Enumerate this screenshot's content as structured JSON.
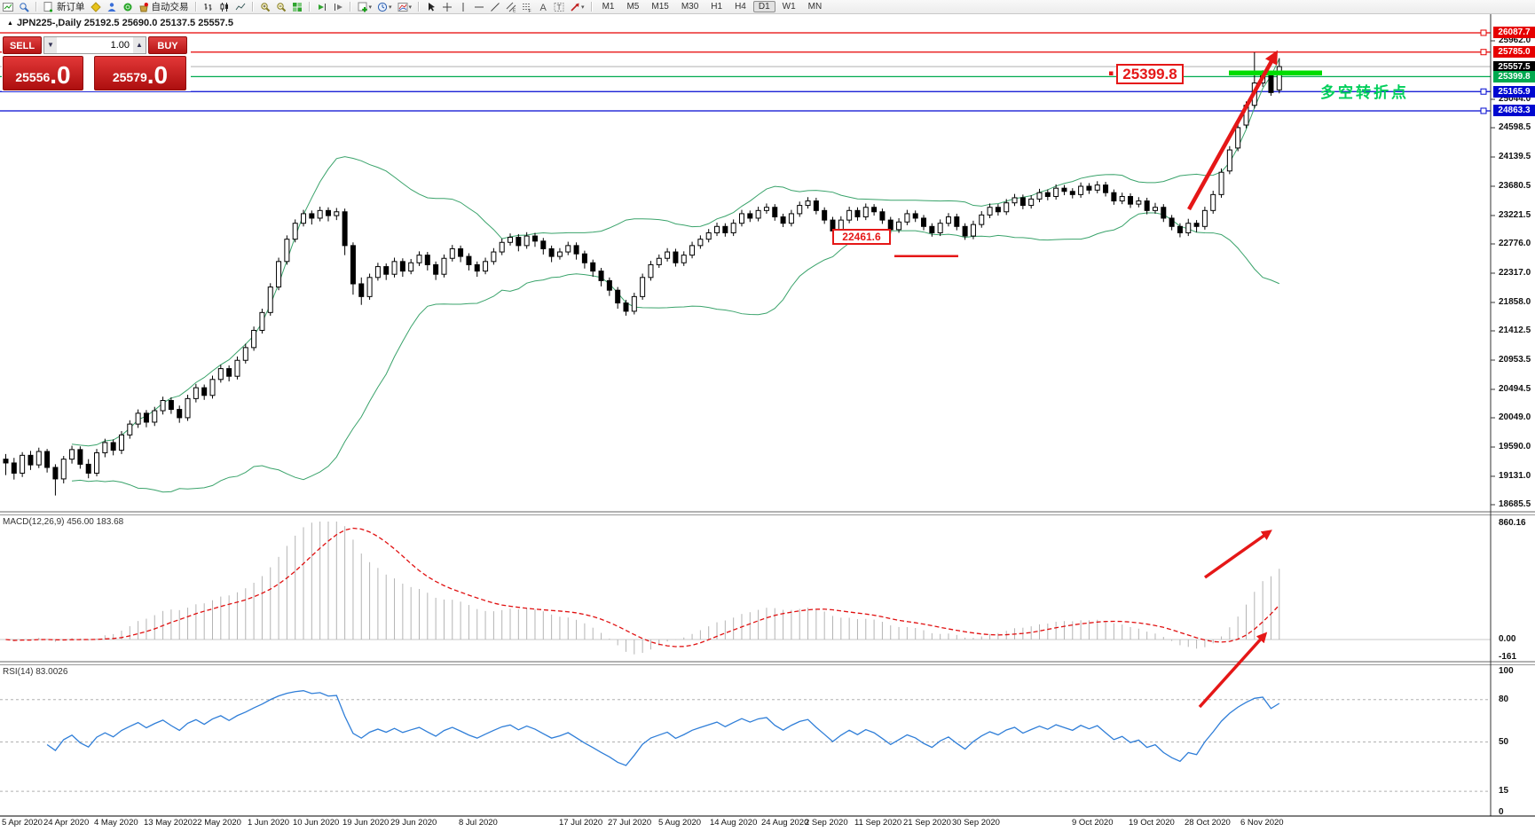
{
  "toolbar": {
    "new_order_label": "新订单",
    "autotrading_label": "自动交易",
    "timeframes": [
      "M1",
      "M5",
      "M15",
      "M30",
      "H1",
      "H4",
      "D1",
      "W1",
      "MN"
    ],
    "active_timeframe": "D1"
  },
  "order_panel": {
    "sell_label": "SELL",
    "buy_label": "BUY",
    "volume": "1.00",
    "sell_price": "25556",
    "sell_price_frac": ".0",
    "buy_price": "25579",
    "buy_price_frac": ".0"
  },
  "chart": {
    "title": "JPN225-,Daily 25192.5 25690.0 25137.5 25557.5",
    "symbol_marker": "▲"
  },
  "annotations": {
    "price_label_upper": "25399.8",
    "price_label_lower": "22461.6",
    "cn_note": "多空转折点"
  },
  "indicator_labels": {
    "macd": "MACD(12,26,9) 456.00 183.68",
    "rsi": "RSI(14) 83.0026"
  },
  "chart_data": {
    "type": "candlestick",
    "symbol": "JPN225-",
    "period": "Daily",
    "last_ohlc": {
      "open": 25192.5,
      "high": 25690.0,
      "low": 25137.5,
      "close": 25557.5
    },
    "bid": 25556.0,
    "ask": 25579.0,
    "visible_price_range": [
      18500,
      26250
    ],
    "price_ticks": [
      25962.0,
      25044.0,
      24598.5,
      24139.5,
      23680.5,
      23221.5,
      22776.0,
      22317.0,
      21858.0,
      21412.5,
      20953.5,
      20494.5,
      20049.0,
      19590.0,
      19131.0,
      18685.5
    ],
    "level_lines": [
      {
        "price": 26087.7,
        "color": "red"
      },
      {
        "price": 25785.0,
        "color": "red"
      },
      {
        "price": 25557.5,
        "color": "gray",
        "type": "last-price"
      },
      {
        "price": 25399.8,
        "color": "green"
      },
      {
        "price": 25165.9,
        "color": "blue"
      },
      {
        "price": 24863.3,
        "color": "blue"
      }
    ],
    "date_labels": [
      "5 Apr 2020",
      "24 Apr 2020",
      "4 May 2020",
      "13 May 2020",
      "22 May 2020",
      "1 Jun 2020",
      "10 Jun 2020",
      "19 Jun 2020",
      "29 Jun 2020",
      "8 Jul 2020",
      "17 Jul 2020",
      "27 Jul 2020",
      "5 Aug 2020",
      "14 Aug 2020",
      "24 Aug 2020",
      "2 Sep 2020",
      "11 Sep 2020",
      "21 Sep 2020",
      "30 Sep 2020",
      "9 Oct 2020",
      "19 Oct 2020",
      "28 Oct 2020",
      "6 Nov 2020"
    ],
    "date_label_x": [
      2,
      49,
      106,
      162,
      217,
      279,
      330,
      386,
      440,
      517,
      630,
      685,
      742,
      800,
      858,
      907,
      963,
      1018,
      1073,
      1208,
      1272,
      1335,
      1398
    ],
    "candles": [
      [
        19400,
        19480,
        19150,
        19340
      ],
      [
        19340,
        19420,
        19080,
        19180
      ],
      [
        19180,
        19510,
        19120,
        19460
      ],
      [
        19460,
        19530,
        19230,
        19310
      ],
      [
        19310,
        19580,
        19260,
        19520
      ],
      [
        19520,
        19560,
        19190,
        19270
      ],
      [
        19270,
        19320,
        18830,
        19090
      ],
      [
        19090,
        19450,
        19020,
        19400
      ],
      [
        19400,
        19610,
        19330,
        19550
      ],
      [
        19550,
        19600,
        19250,
        19320
      ],
      [
        19320,
        19400,
        19100,
        19180
      ],
      [
        19180,
        19560,
        19130,
        19500
      ],
      [
        19500,
        19720,
        19430,
        19660
      ],
      [
        19660,
        19710,
        19460,
        19540
      ],
      [
        19540,
        19840,
        19480,
        19780
      ],
      [
        19780,
        20010,
        19720,
        19950
      ],
      [
        19950,
        20180,
        19890,
        20120
      ],
      [
        20120,
        20170,
        19900,
        19980
      ],
      [
        19980,
        20220,
        19920,
        20160
      ],
      [
        20160,
        20380,
        20100,
        20320
      ],
      [
        20320,
        20370,
        20110,
        20180
      ],
      [
        20180,
        20240,
        19970,
        20050
      ],
      [
        20050,
        20410,
        20000,
        20350
      ],
      [
        20350,
        20580,
        20290,
        20520
      ],
      [
        20520,
        20570,
        20330,
        20400
      ],
      [
        20400,
        20710,
        20350,
        20650
      ],
      [
        20650,
        20880,
        20600,
        20820
      ],
      [
        20820,
        20870,
        20620,
        20700
      ],
      [
        20700,
        21010,
        20650,
        20950
      ],
      [
        20950,
        21210,
        20900,
        21150
      ],
      [
        21150,
        21480,
        21100,
        21420
      ],
      [
        21420,
        21760,
        21370,
        21700
      ],
      [
        21700,
        22160,
        21650,
        22100
      ],
      [
        22100,
        22560,
        22050,
        22500
      ],
      [
        22500,
        22910,
        22450,
        22850
      ],
      [
        22850,
        23160,
        22800,
        23100
      ],
      [
        23100,
        23310,
        23050,
        23250
      ],
      [
        23250,
        23300,
        23080,
        23180
      ],
      [
        23180,
        23360,
        23130,
        23300
      ],
      [
        23300,
        23350,
        23130,
        23220
      ],
      [
        23220,
        23340,
        23150,
        23280
      ],
      [
        23280,
        23330,
        22600,
        22750
      ],
      [
        22750,
        22800,
        21980,
        22150
      ],
      [
        22150,
        22250,
        21820,
        21950
      ],
      [
        21950,
        22310,
        21900,
        22250
      ],
      [
        22250,
        22480,
        22200,
        22420
      ],
      [
        22420,
        22470,
        22210,
        22300
      ],
      [
        22300,
        22560,
        22250,
        22500
      ],
      [
        22500,
        22550,
        22260,
        22350
      ],
      [
        22350,
        22540,
        22300,
        22480
      ],
      [
        22480,
        22660,
        22430,
        22600
      ],
      [
        22600,
        22650,
        22360,
        22450
      ],
      [
        22450,
        22500,
        22210,
        22300
      ],
      [
        22300,
        22610,
        22250,
        22550
      ],
      [
        22550,
        22760,
        22500,
        22700
      ],
      [
        22700,
        22750,
        22490,
        22580
      ],
      [
        22580,
        22630,
        22360,
        22450
      ],
      [
        22450,
        22500,
        22260,
        22350
      ],
      [
        22350,
        22560,
        22300,
        22500
      ],
      [
        22500,
        22710,
        22450,
        22650
      ],
      [
        22650,
        22860,
        22600,
        22800
      ],
      [
        22800,
        22940,
        22750,
        22880
      ],
      [
        22880,
        22930,
        22660,
        22750
      ],
      [
        22750,
        22960,
        22700,
        22900
      ],
      [
        22900,
        22950,
        22730,
        22820
      ],
      [
        22820,
        22870,
        22610,
        22700
      ],
      [
        22700,
        22750,
        22490,
        22580
      ],
      [
        22580,
        22710,
        22530,
        22650
      ],
      [
        22650,
        22810,
        22600,
        22750
      ],
      [
        22750,
        22800,
        22530,
        22620
      ],
      [
        22620,
        22670,
        22390,
        22480
      ],
      [
        22480,
        22530,
        22260,
        22350
      ],
      [
        22350,
        22400,
        22110,
        22200
      ],
      [
        22200,
        22250,
        21960,
        22050
      ],
      [
        22050,
        22100,
        21760,
        21850
      ],
      [
        21850,
        21900,
        21650,
        21720
      ],
      [
        21720,
        22010,
        21670,
        21950
      ],
      [
        21950,
        22310,
        21900,
        22250
      ],
      [
        22250,
        22510,
        22200,
        22450
      ],
      [
        22450,
        22610,
        22400,
        22550
      ],
      [
        22550,
        22710,
        22500,
        22650
      ],
      [
        22650,
        22700,
        22420,
        22480
      ],
      [
        22480,
        22660,
        22430,
        22600
      ],
      [
        22600,
        22810,
        22550,
        22750
      ],
      [
        22750,
        22910,
        22700,
        22850
      ],
      [
        22850,
        23010,
        22800,
        22950
      ],
      [
        22950,
        23110,
        22900,
        23050
      ],
      [
        23050,
        23100,
        22890,
        22950
      ],
      [
        22950,
        23160,
        22900,
        23100
      ],
      [
        23100,
        23310,
        23050,
        23250
      ],
      [
        23250,
        23300,
        23120,
        23180
      ],
      [
        23180,
        23360,
        23130,
        23300
      ],
      [
        23300,
        23410,
        23250,
        23350
      ],
      [
        23350,
        23400,
        23140,
        23200
      ],
      [
        23200,
        23250,
        23040,
        23100
      ],
      [
        23100,
        23310,
        23050,
        23250
      ],
      [
        23250,
        23440,
        23200,
        23380
      ],
      [
        23380,
        23510,
        23330,
        23450
      ],
      [
        23450,
        23500,
        23240,
        23300
      ],
      [
        23300,
        23350,
        23090,
        23150
      ],
      [
        23150,
        23200,
        22920,
        22980
      ],
      [
        22980,
        23210,
        22930,
        23150
      ],
      [
        23150,
        23360,
        23100,
        23300
      ],
      [
        23300,
        23350,
        23140,
        23200
      ],
      [
        23200,
        23410,
        23150,
        23350
      ],
      [
        23350,
        23400,
        23220,
        23280
      ],
      [
        23280,
        23330,
        23090,
        23150
      ],
      [
        23150,
        23200,
        22940,
        23000
      ],
      [
        23000,
        23180,
        22950,
        23120
      ],
      [
        23120,
        23310,
        23070,
        23250
      ],
      [
        23250,
        23300,
        23120,
        23180
      ],
      [
        23180,
        23230,
        22990,
        23050
      ],
      [
        23050,
        23100,
        22890,
        22950
      ],
      [
        22950,
        23160,
        22900,
        23100
      ],
      [
        23100,
        23260,
        23050,
        23200
      ],
      [
        23200,
        23250,
        22990,
        23050
      ],
      [
        23050,
        23100,
        22840,
        22900
      ],
      [
        22900,
        23140,
        22850,
        23080
      ],
      [
        23080,
        23290,
        23030,
        23230
      ],
      [
        23230,
        23410,
        23180,
        23350
      ],
      [
        23350,
        23400,
        23220,
        23280
      ],
      [
        23280,
        23480,
        23230,
        23420
      ],
      [
        23420,
        23560,
        23370,
        23500
      ],
      [
        23500,
        23550,
        23320,
        23380
      ],
      [
        23380,
        23540,
        23330,
        23480
      ],
      [
        23480,
        23640,
        23430,
        23580
      ],
      [
        23580,
        23630,
        23460,
        23520
      ],
      [
        23520,
        23710,
        23470,
        23650
      ],
      [
        23650,
        23700,
        23540,
        23600
      ],
      [
        23600,
        23650,
        23490,
        23550
      ],
      [
        23550,
        23740,
        23500,
        23680
      ],
      [
        23680,
        23730,
        23560,
        23620
      ],
      [
        23620,
        23760,
        23570,
        23700
      ],
      [
        23700,
        23750,
        23520,
        23580
      ],
      [
        23580,
        23630,
        23390,
        23450
      ],
      [
        23450,
        23580,
        23400,
        23520
      ],
      [
        23520,
        23570,
        23340,
        23400
      ],
      [
        23400,
        23510,
        23350,
        23450
      ],
      [
        23450,
        23500,
        23240,
        23300
      ],
      [
        23300,
        23420,
        23250,
        23350
      ],
      [
        23350,
        23400,
        23120,
        23180
      ],
      [
        23180,
        23230,
        22990,
        23050
      ],
      [
        23050,
        23100,
        22880,
        22950
      ],
      [
        22950,
        23170,
        22900,
        23100
      ],
      [
        23100,
        23150,
        22960,
        23050
      ],
      [
        23050,
        23360,
        23000,
        23300
      ],
      [
        23300,
        23610,
        23250,
        23550
      ],
      [
        23550,
        23960,
        23500,
        23900
      ],
      [
        23920,
        24310,
        23870,
        24250
      ],
      [
        24280,
        24660,
        24230,
        24600
      ],
      [
        24640,
        25010,
        24590,
        24950
      ],
      [
        24950,
        25780,
        24900,
        25300
      ],
      [
        25300,
        25500,
        25240,
        25420
      ],
      [
        25420,
        25470,
        25100,
        25150
      ],
      [
        25192.5,
        25690,
        25137.5,
        25557.5
      ]
    ],
    "indicators": {
      "bollinger": {
        "period": 20,
        "deviation": 2
      },
      "macd": {
        "fast": 12,
        "slow": 26,
        "signal": 9,
        "current_main": 456.0,
        "current_signal": 183.68,
        "scale_labels": [
          "860.16",
          "0.00",
          "-161"
        ]
      },
      "rsi": {
        "period": 14,
        "current": 83.0026,
        "levels": [
          80,
          50,
          15
        ],
        "scale_top": "100",
        "scale_bottom": "0"
      }
    },
    "colors": {
      "up_candle": "#ffffff",
      "down_candle": "#000000",
      "bollinger": "#3aa36b",
      "macd_hist": "#b4b4b4",
      "macd_signal": "#e01010",
      "rsi_line": "#2f7ed8",
      "arrow": "#e51717",
      "level_red": "#e60000",
      "level_blue": "#0008d0",
      "level_green": "#00a94f",
      "last_price_gray": "#b8b8b8",
      "highlight_green": "#00dd00"
    }
  }
}
